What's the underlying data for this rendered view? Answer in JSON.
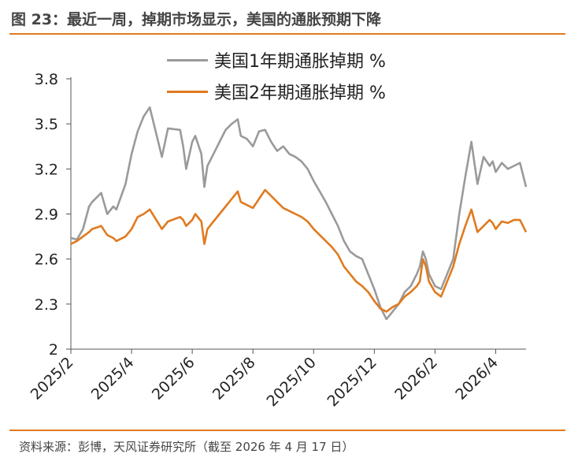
{
  "figure": {
    "title": "图 23：最近一周，掉期市场显示，美国的通胀预期下降",
    "source": "资料来源：彭博，天风证券研究所（截至 2026 年 4 月 17 日）"
  },
  "chart_data": {
    "type": "line",
    "title": "图 23：最近一周，掉期市场显示，美国的通胀预期下降",
    "xlabel": "",
    "ylabel": "",
    "ylim": [
      2,
      3.8
    ],
    "yticks": [
      "2",
      "2.3",
      "2.6",
      "2.9",
      "3.2",
      "3.5",
      "3.8"
    ],
    "xticks": [
      "2025/2",
      "2025/4",
      "2025/6",
      "2025/8",
      "2025/10",
      "2025/12",
      "2026/2",
      "2026/4"
    ],
    "legend_position": "top-center",
    "grid": false,
    "x_month_index": [
      0,
      0.1,
      0.2,
      0.3,
      0.35,
      0.5,
      0.6,
      0.7,
      0.75,
      0.9,
      1.0,
      1.1,
      1.2,
      1.3,
      1.5,
      1.6,
      1.8,
      1.85,
      1.9,
      2.0,
      2.05,
      2.15,
      2.2,
      2.25,
      2.35,
      2.45,
      2.55,
      2.65,
      2.75,
      2.8,
      2.9,
      3.0,
      3.1,
      3.2,
      3.3,
      3.4,
      3.5,
      3.6,
      3.7,
      3.8,
      3.9,
      4.0,
      4.1,
      4.2,
      4.3,
      4.4,
      4.5,
      4.6,
      4.7,
      4.8,
      4.9,
      5.0,
      5.1,
      5.2,
      5.3,
      5.4,
      5.5,
      5.6,
      5.7,
      5.75,
      5.8,
      5.85,
      5.9,
      6.0,
      6.1,
      6.2,
      6.3,
      6.4,
      6.5,
      6.6,
      6.7,
      6.8,
      6.9,
      6.95,
      7.0,
      7.1,
      7.2,
      7.3,
      7.4,
      7.5
    ],
    "series": [
      {
        "name": "美国1年期通胀掉期 %",
        "color": "#9a9a9a",
        "values": [
          2.74,
          2.73,
          2.8,
          2.95,
          2.98,
          3.04,
          2.9,
          2.95,
          2.93,
          3.1,
          3.3,
          3.45,
          3.55,
          3.61,
          3.28,
          3.47,
          3.46,
          3.35,
          3.2,
          3.38,
          3.42,
          3.3,
          3.08,
          3.22,
          3.3,
          3.38,
          3.46,
          3.5,
          3.53,
          3.42,
          3.4,
          3.35,
          3.45,
          3.46,
          3.38,
          3.32,
          3.35,
          3.3,
          3.28,
          3.25,
          3.2,
          3.12,
          3.05,
          2.98,
          2.9,
          2.82,
          2.72,
          2.65,
          2.62,
          2.6,
          2.5,
          2.4,
          2.28,
          2.2,
          2.25,
          2.3,
          2.38,
          2.42,
          2.5,
          2.55,
          2.65,
          2.6,
          2.5,
          2.42,
          2.4,
          2.5,
          2.6,
          2.9,
          3.15,
          3.38,
          3.1,
          3.28,
          3.22,
          3.25,
          3.18,
          3.24,
          3.2,
          3.22,
          3.24,
          3.08
        ]
      },
      {
        "name": "美国2年期通胀掉期 %",
        "color": "#e07a1f",
        "values": [
          2.7,
          2.72,
          2.75,
          2.78,
          2.8,
          2.82,
          2.76,
          2.74,
          2.72,
          2.75,
          2.8,
          2.88,
          2.9,
          2.93,
          2.8,
          2.85,
          2.88,
          2.86,
          2.82,
          2.86,
          2.9,
          2.85,
          2.7,
          2.8,
          2.85,
          2.9,
          2.95,
          3.0,
          3.05,
          2.98,
          2.96,
          2.94,
          3.0,
          3.06,
          3.02,
          2.98,
          2.94,
          2.92,
          2.9,
          2.88,
          2.85,
          2.8,
          2.76,
          2.72,
          2.68,
          2.63,
          2.55,
          2.5,
          2.45,
          2.42,
          2.38,
          2.32,
          2.27,
          2.25,
          2.28,
          2.3,
          2.35,
          2.38,
          2.42,
          2.45,
          2.6,
          2.55,
          2.45,
          2.38,
          2.35,
          2.45,
          2.55,
          2.7,
          2.82,
          2.93,
          2.78,
          2.82,
          2.86,
          2.84,
          2.8,
          2.85,
          2.84,
          2.86,
          2.86,
          2.78
        ]
      }
    ]
  }
}
